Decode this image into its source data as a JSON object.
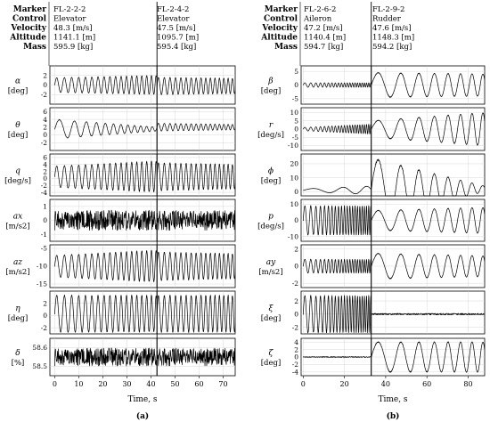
{
  "panels": [
    {
      "id": "a",
      "caption": "(a)",
      "header_keys": [
        "Marker",
        "Control",
        "Velocity",
        "Altitude",
        "Mass"
      ],
      "header_columns": [
        {
          "values": [
            "FL-2-2-2",
            "Elevator",
            "48.3 [m/s]",
            "1141.1 [m]",
            "595.9 [kg]"
          ]
        },
        {
          "values": [
            "FL-2-4-2",
            "Elevator",
            "47.5 [m/s]",
            "1095.7 [m]",
            "595.4 [kg]"
          ]
        }
      ],
      "split_at": 42.5,
      "xlabel": "Time, s",
      "xlim": [
        -2,
        75
      ],
      "xticks": [
        0,
        10,
        20,
        30,
        40,
        50,
        60,
        70
      ]
    },
    {
      "id": "b",
      "caption": "(b)",
      "header_keys": [
        "Marker",
        "Control",
        "Velocity",
        "Altitude",
        "Mass"
      ],
      "header_columns": [
        {
          "values": [
            "FL-2-6-2",
            "Aileron",
            "47.2 [m/s]",
            "1140.4 [m]",
            "594.7 [kg]"
          ]
        },
        {
          "values": [
            "FL-2-9-2",
            "Rudder",
            "47.6 [m/s]",
            "1148.3 [m]",
            "594.2 [kg]"
          ]
        }
      ],
      "split_at": 33,
      "xlabel": "Time, s",
      "xlim": [
        -1,
        88
      ],
      "xticks": [
        0,
        20,
        40,
        60,
        80
      ]
    }
  ],
  "chart_data": [
    {
      "type": "line",
      "panel": "a",
      "variable": "alpha",
      "label_main": "α",
      "label_unit": "[deg]",
      "ylim": [
        -4,
        4
      ],
      "yticks": [
        -2,
        0,
        2
      ],
      "series": [
        {
          "segments": [
            {
              "x_start": 0,
              "x_end": 42.5,
              "baseline": 0,
              "amplitude_start": 1.5,
              "amplitude_end": 2.0,
              "frequency_start": 0.3,
              "frequency_end": 0.52
            },
            {
              "x_start": 42.5,
              "x_end": 75,
              "baseline": -0.2,
              "amplitude_start": 1.8,
              "amplitude_end": 1.6,
              "frequency_start": 0.4,
              "frequency_end": 0.58
            }
          ]
        }
      ]
    },
    {
      "type": "line",
      "panel": "a",
      "variable": "theta",
      "label_main": "θ",
      "label_unit": "[deg]",
      "ylim": [
        -4,
        7
      ],
      "yticks": [
        -2,
        0,
        2,
        4,
        6
      ],
      "series": [
        {
          "segments": [
            {
              "x_start": 0,
              "x_end": 42.5,
              "baseline": 1.5,
              "amplitude_start": 2.5,
              "amplitude_end": 0.5,
              "frequency_start": 0.12,
              "frequency_end": 0.45
            },
            {
              "x_start": 42.5,
              "x_end": 75,
              "baseline": 2.0,
              "amplitude_start": 1.0,
              "amplitude_end": 0.7,
              "frequency_start": 0.4,
              "frequency_end": 0.58
            }
          ]
        }
      ]
    },
    {
      "type": "line",
      "panel": "a",
      "variable": "q",
      "label_main": "q",
      "label_unit": "[deg/s]",
      "ylim": [
        -5,
        7
      ],
      "yticks": [
        -4,
        -2,
        0,
        2,
        4,
        6
      ],
      "series": [
        {
          "segments": [
            {
              "x_start": 0,
              "x_end": 42.5,
              "baseline": 0.5,
              "amplitude_start": 3.0,
              "amplitude_end": 4.5,
              "frequency_start": 0.3,
              "frequency_end": 0.52
            },
            {
              "x_start": 42.5,
              "x_end": 75,
              "baseline": 0.5,
              "amplitude_start": 4.0,
              "amplitude_end": 3.5,
              "frequency_start": 0.4,
              "frequency_end": 0.58
            }
          ]
        }
      ]
    },
    {
      "type": "line",
      "panel": "a",
      "variable": "ax",
      "label_main": "ax",
      "label_unit": "[m/s2]",
      "ylim": [
        -1.5,
        1.5
      ],
      "yticks": [
        -1,
        0,
        1
      ],
      "series": [
        {
          "segments": [
            {
              "x_start": 0,
              "x_end": 42.5,
              "baseline": 0,
              "amplitude_start": 0.9,
              "amplitude_end": 0.9,
              "frequency_start": 3,
              "frequency_end": 3
            },
            {
              "x_start": 42.5,
              "x_end": 75,
              "baseline": 0,
              "amplitude_start": 0.9,
              "amplitude_end": 0.9,
              "frequency_start": 3,
              "frequency_end": 3
            }
          ]
        }
      ]
    },
    {
      "type": "line",
      "panel": "a",
      "variable": "az",
      "label_main": "az",
      "label_unit": "[m/s2]",
      "ylim": [
        -16,
        -4
      ],
      "yticks": [
        -15,
        -10,
        -5
      ],
      "series": [
        {
          "segments": [
            {
              "x_start": 0,
              "x_end": 42.5,
              "baseline": -10,
              "amplitude_start": 3.0,
              "amplitude_end": 4.5,
              "frequency_start": 0.3,
              "frequency_end": 0.52
            },
            {
              "x_start": 42.5,
              "x_end": 75,
              "baseline": -10,
              "amplitude_start": 4.0,
              "amplitude_end": 3.5,
              "frequency_start": 0.4,
              "frequency_end": 0.58
            }
          ]
        }
      ]
    },
    {
      "type": "line",
      "panel": "a",
      "variable": "eta",
      "label_main": "η",
      "label_unit": "[deg]",
      "ylim": [
        -3,
        4
      ],
      "yticks": [
        -2,
        0,
        2
      ],
      "series": [
        {
          "segments": [
            {
              "x_start": 0,
              "x_end": 42.5,
              "baseline": 0.3,
              "amplitude_start": 3.0,
              "amplitude_end": 3.0,
              "frequency_start": 0.3,
              "frequency_end": 0.52
            },
            {
              "x_start": 42.5,
              "x_end": 75,
              "baseline": 0.3,
              "amplitude_start": 3.0,
              "amplitude_end": 3.0,
              "frequency_start": 0.4,
              "frequency_end": 0.58
            }
          ]
        }
      ]
    },
    {
      "type": "line",
      "panel": "a",
      "variable": "delta",
      "label_main": "δ",
      "label_unit": "[%]",
      "ylim": [
        58.45,
        58.65
      ],
      "yticks": [
        58.5,
        58.6
      ],
      "series": [
        {
          "segments": [
            {
              "x_start": 0,
              "x_end": 42.5,
              "baseline": 58.55,
              "amplitude_start": 0.06,
              "amplitude_end": 0.06,
              "frequency_start": 4,
              "frequency_end": 4
            },
            {
              "x_start": 42.5,
              "x_end": 75,
              "baseline": 58.55,
              "amplitude_start": 0.06,
              "amplitude_end": 0.06,
              "frequency_start": 4,
              "frequency_end": 4
            }
          ]
        }
      ]
    },
    {
      "type": "line",
      "panel": "b",
      "variable": "beta",
      "label_main": "β",
      "label_unit": "[deg]",
      "ylim": [
        -7,
        7
      ],
      "yticks": [
        -5,
        0,
        5
      ],
      "series": [
        {
          "segments": [
            {
              "x_start": 0,
              "x_end": 33,
              "baseline": 0,
              "amplitude_start": 0.8,
              "amplitude_end": 0.8,
              "frequency_start": 0.3,
              "frequency_end": 1.0
            },
            {
              "x_start": 33,
              "x_end": 88,
              "baseline": 0,
              "amplitude_start": 4.5,
              "amplitude_end": 4.0,
              "frequency_start": 0.07,
              "frequency_end": 0.2
            }
          ]
        }
      ]
    },
    {
      "type": "line",
      "panel": "b",
      "variable": "r",
      "label_main": "r",
      "label_unit": "[deg/s]",
      "ylim": [
        -13,
        13
      ],
      "yticks": [
        -10,
        -5,
        0,
        5,
        10
      ],
      "series": [
        {
          "segments": [
            {
              "x_start": 0,
              "x_end": 33,
              "baseline": 0,
              "amplitude_start": 1.0,
              "amplitude_end": 3.0,
              "frequency_start": 0.3,
              "frequency_end": 1.0
            },
            {
              "x_start": 33,
              "x_end": 88,
              "baseline": 0,
              "amplitude_start": 5.0,
              "amplitude_end": 10.0,
              "frequency_start": 0.07,
              "frequency_end": 0.2
            }
          ]
        }
      ]
    },
    {
      "type": "line",
      "panel": "b",
      "variable": "phi",
      "label_main": "ϕ",
      "label_unit": "[deg]",
      "ylim": [
        -3,
        27
      ],
      "yticks": [
        0,
        10,
        20
      ],
      "series": [
        {
          "segments": [
            {
              "x_start": 0,
              "x_end": 33,
              "baseline": 1.0,
              "amplitude_start": 1.0,
              "amplitude_end": 3.0,
              "frequency_start": 0.05,
              "frequency_end": 0.1
            },
            {
              "x_start": 33,
              "x_end": 88,
              "baseline": 2.0,
              "amplitude_start": 22.0,
              "amplitude_end": 2.0,
              "frequency_start": 0.07,
              "frequency_end": 0.2
            }
          ]
        }
      ]
    },
    {
      "type": "line",
      "panel": "b",
      "variable": "p",
      "label_main": "p",
      "label_unit": "[deg/s]",
      "ylim": [
        -13,
        13
      ],
      "yticks": [
        -10,
        0,
        10
      ],
      "series": [
        {
          "segments": [
            {
              "x_start": 0,
              "x_end": 33,
              "baseline": 0,
              "amplitude_start": 9.0,
              "amplitude_end": 9.0,
              "frequency_start": 0.3,
              "frequency_end": 1.0
            },
            {
              "x_start": 33,
              "x_end": 88,
              "baseline": 0,
              "amplitude_start": 6.0,
              "amplitude_end": 8.0,
              "frequency_start": 0.07,
              "frequency_end": 0.2
            }
          ]
        }
      ]
    },
    {
      "type": "line",
      "panel": "b",
      "variable": "ay",
      "label_main": "ay",
      "label_unit": "[m/s2]",
      "ylim": [
        -2.5,
        2.5
      ],
      "yticks": [
        -2,
        0,
        2
      ],
      "series": [
        {
          "segments": [
            {
              "x_start": 0,
              "x_end": 33,
              "baseline": 0,
              "amplitude_start": 0.8,
              "amplitude_end": 0.8,
              "frequency_start": 0.3,
              "frequency_end": 1.0
            },
            {
              "x_start": 33,
              "x_end": 88,
              "baseline": 0,
              "amplitude_start": 1.5,
              "amplitude_end": 1.2,
              "frequency_start": 0.07,
              "frequency_end": 0.2
            }
          ]
        }
      ]
    },
    {
      "type": "line",
      "panel": "b",
      "variable": "xi",
      "label_main": "ξ",
      "label_unit": "[deg]",
      "ylim": [
        -3,
        3.5
      ],
      "yticks": [
        -2,
        0,
        2
      ],
      "series": [
        {
          "segments": [
            {
              "x_start": 0,
              "x_end": 33,
              "baseline": 0,
              "amplitude_start": 2.8,
              "amplitude_end": 2.8,
              "frequency_start": 0.3,
              "frequency_end": 1.0
            },
            {
              "x_start": 33,
              "x_end": 88,
              "baseline": 0,
              "amplitude_start": 0.15,
              "amplitude_end": 0.15,
              "frequency_start": 3,
              "frequency_end": 3
            }
          ]
        }
      ]
    },
    {
      "type": "line",
      "panel": "b",
      "variable": "zeta",
      "label_main": "ζ",
      "label_unit": "[deg]",
      "ylim": [
        -5,
        5
      ],
      "yticks": [
        -4,
        -2,
        0,
        2,
        4
      ],
      "series": [
        {
          "segments": [
            {
              "x_start": 0,
              "x_end": 33,
              "baseline": 0,
              "amplitude_start": 0.15,
              "amplitude_end": 0.15,
              "frequency_start": 3,
              "frequency_end": 3
            },
            {
              "x_start": 33,
              "x_end": 88,
              "baseline": 0,
              "amplitude_start": 4.0,
              "amplitude_end": 4.0,
              "frequency_start": 0.07,
              "frequency_end": 0.2
            }
          ]
        }
      ]
    }
  ]
}
